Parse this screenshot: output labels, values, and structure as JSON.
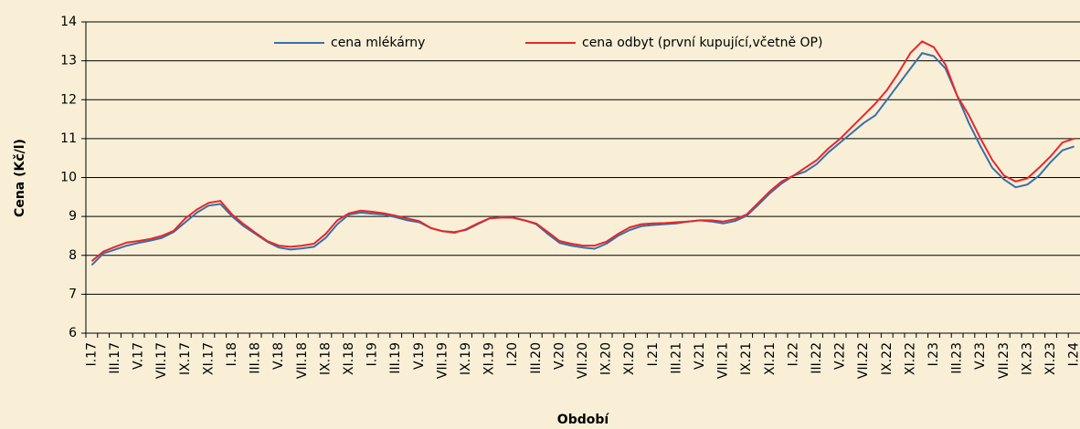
{
  "chart_data": {
    "type": "line",
    "x_label": "Období",
    "y_label": "Cena (Kč/l)",
    "categories": [
      "I.17",
      null,
      "III.17",
      null,
      "V.17",
      null,
      "VII.17",
      null,
      "IX.17",
      null,
      "XI.17",
      null,
      "I.18",
      null,
      "III.18",
      null,
      "V.18",
      null,
      "VII.18",
      null,
      "IX.18",
      null,
      "XI.18",
      null,
      "I.19",
      null,
      "III.19",
      null,
      "V.19",
      null,
      "VII.19",
      null,
      "IX.19",
      null,
      "XI.19",
      null,
      "I.20",
      null,
      "III.20",
      null,
      "V.20",
      null,
      "VII.20",
      null,
      "IX.20",
      null,
      "XI.20",
      null,
      "I.21",
      null,
      "III.21",
      null,
      "V.21",
      null,
      "VII.21",
      null,
      "IX.21",
      null,
      "XI.21",
      null,
      "I.22",
      null,
      "III.22",
      null,
      "V.22",
      null,
      "VII.22",
      null,
      "IX.22",
      null,
      "XI.22",
      null,
      "I.23",
      null,
      "III.23",
      null,
      "V.23",
      null,
      "VII.23",
      null,
      "IX.23",
      null,
      "XI.23",
      null,
      "I.24"
    ],
    "series": [
      {
        "name": "cena mlékárny",
        "color": "#3b6ea8",
        "values": [
          7.75,
          8.05,
          8.15,
          8.25,
          8.32,
          8.38,
          8.45,
          8.6,
          8.85,
          9.1,
          9.28,
          9.32,
          9.0,
          8.75,
          8.55,
          8.35,
          8.2,
          8.15,
          8.18,
          8.22,
          8.45,
          8.8,
          9.05,
          9.1,
          9.07,
          9.05,
          8.98,
          8.9,
          8.85,
          8.7,
          8.62,
          8.6,
          8.65,
          8.8,
          8.95,
          8.98,
          8.97,
          8.9,
          8.8,
          8.55,
          8.32,
          8.25,
          8.2,
          8.17,
          8.3,
          8.5,
          8.65,
          8.75,
          8.78,
          8.8,
          8.82,
          8.87,
          8.9,
          8.87,
          8.82,
          8.88,
          9.02,
          9.3,
          9.6,
          9.85,
          10.05,
          10.15,
          10.35,
          10.65,
          10.9,
          11.15,
          11.4,
          11.6,
          12.0,
          12.4,
          12.8,
          13.2,
          13.12,
          12.8,
          12.1,
          11.4,
          10.8,
          10.25,
          9.95,
          9.75,
          9.82,
          10.05,
          10.4,
          10.7,
          10.8
        ]
      },
      {
        "name": "cena odbyt (první kupující,včetně OP)",
        "color": "#e8262b",
        "values": [
          7.85,
          8.1,
          8.22,
          8.33,
          8.37,
          8.42,
          8.5,
          8.63,
          8.95,
          9.18,
          9.35,
          9.4,
          9.05,
          8.8,
          8.58,
          8.37,
          8.25,
          8.22,
          8.25,
          8.3,
          8.55,
          8.9,
          9.08,
          9.15,
          9.12,
          9.08,
          9.02,
          8.95,
          8.88,
          8.7,
          8.62,
          8.58,
          8.67,
          8.82,
          8.95,
          8.97,
          8.97,
          8.9,
          8.82,
          8.6,
          8.37,
          8.3,
          8.25,
          8.25,
          8.35,
          8.55,
          8.72,
          8.8,
          8.82,
          8.83,
          8.85,
          8.87,
          8.9,
          8.9,
          8.87,
          8.93,
          9.05,
          9.35,
          9.65,
          9.9,
          10.05,
          10.25,
          10.45,
          10.75,
          11.0,
          11.3,
          11.6,
          11.9,
          12.25,
          12.7,
          13.2,
          13.5,
          13.35,
          12.9,
          12.1,
          11.6,
          11.0,
          10.45,
          10.05,
          9.9,
          9.98,
          10.25,
          10.55,
          10.9,
          11.0
        ]
      }
    ],
    "ylim": [
      6,
      14
    ],
    "yticks": [
      6,
      7,
      8,
      9,
      10,
      11,
      12,
      13,
      14
    ],
    "grid": true,
    "legend": "top"
  }
}
